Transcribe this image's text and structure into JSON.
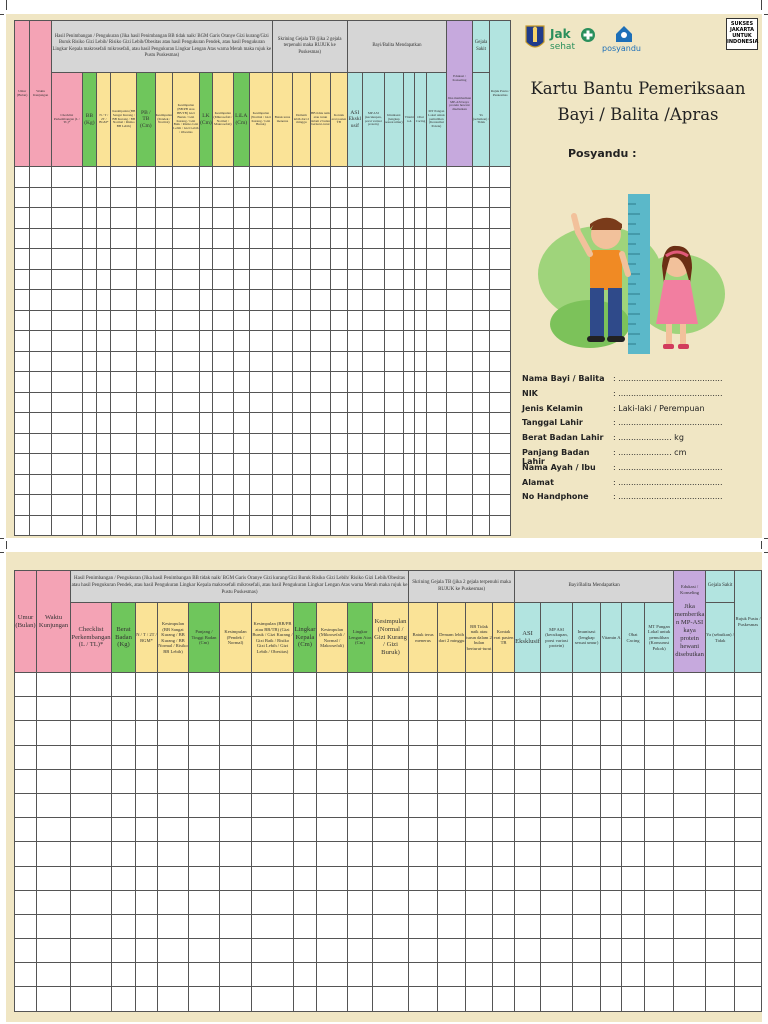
{
  "card": {
    "title_line1": "Kartu Bantu Pemeriksaan",
    "title_line2": "Bayi / Balita /Apras",
    "posyandu_label": "Posyandu :",
    "badge": "SUKSES JAKARTA UNTUK INDONESIA",
    "logo_jaksehat": "Jak sehat",
    "logo_posyandu": "posyandu"
  },
  "form": {
    "fields": [
      {
        "label": "Nama Bayi / Balita",
        "value": ": ........................................."
      },
      {
        "label": "NIK",
        "value": ": ........................................."
      },
      {
        "label": "Jenis Kelamin",
        "value": ": Laki-laki / Perempuan"
      },
      {
        "label": "Tanggal Lahir",
        "value": ": ........................................."
      },
      {
        "label": "Berat Badan Lahir",
        "value": ": ..................... kg"
      },
      {
        "label": "Panjang Badan Lahir",
        "value": ": ..................... cm"
      },
      {
        "label": "Nama Ayah / Ibu",
        "value": ": ........................................."
      },
      {
        "label": "Alamat",
        "value": ": ........................................."
      },
      {
        "label": "No Handphone",
        "value": ": ........................................."
      }
    ]
  },
  "table1": {
    "group_hasil": "Hasil Penimbangan / Pengukuran (Jika hasil Penimbangan BB tidak naik/ BGM Garis Oranye Gizi kurang/Gizi Buruk Risiko Gizi Lebih/ Risiko Gizi Lebih/Obesitas atau hasil Pengukuran Pendek, atau hasil Pengukuran Lingkar Kepala makrosefali mikrosefali, atau hasil Pengukuran Lingkar Lengan Atas warna Merah maka rujuk ke Pustu Puskesmas)",
    "group_skrining": "Skrining Gejala TB (jika 2 gejala terpenuhi maka RUJUK ke Puskesmas)",
    "group_mendapatkan": "Bayi/Balita Mendapatkan",
    "group_edukasi": "Edukasi / Konseling",
    "group_gejala": "Gejala Sakit",
    "cols": [
      "Umur (Bulan)",
      "Waktu Kunjungan",
      "Checklist Perkembangan (L / TL)*",
      "BB (Kg)",
      "N / T / 2T / BGM*",
      "Kesimpulan (BB Sangat Kurang / BB Kurang / BB Normal / Risiko BB Lebih)",
      "PB / TB (Cm)",
      "Kesimpulan (Pendek / Normal)",
      "Kesimpulan (BB/PB atau BB/TB) Gizi Buruk / Gizi Kurang / Gizi Baik / Risiko Gizi Lebih / Gizi Lebih / Obesitas",
      "LK (Cm)",
      "Kesimpulan (Mikrosefali / Normal / Makrosefali)",
      "LiLA (Cm)",
      "Kesimpulan (Normal / Gizi Kurang / Gizi Buruk)",
      "Batuk terus menerus",
      "Demam lebih dari 2 minggu",
      "BB tidak naik atau turun dalam 2 bulan berturut-turut",
      "Kontak erat pasien TB",
      "ASI Eksklusif",
      "MP ASI (kecukupan, porsi variasi protein)",
      "Imunisasi (lengkap sesuai umur)",
      "Vitamin A",
      "Obat Cacing",
      "MT Pangan Lokal untuk pemulihan (Konsumsi Pokok)",
      "Jika memberikan MP-ASI kaya protein hewani disebutkan",
      "Ya (sebutkan) / Tidak",
      "Rujuk Pustu / Puskesmas"
    ]
  },
  "table2": {
    "group_hasil": "Hasil Penimbangan / Pengukuran (Jika hasil Penimbangan BB tidak naik/ BGM Garis Oranye Gizi kurang/Gizi Buruk Risiko Gizi Lebih/ Risiko Gizi Lebih/Obesitas atau hasil Pengukuran Pendek, atau hasil Pengukuran Lingkar Kepala makrosefali mikrosefali, atau hasil Pengukuran Lingkar Lengan Atas warna Merah maka rujuk ke Pustu Puskesmas)",
    "group_skrining": "Skrining Gejala TB (jika 2 gejala terpenuhi maka RUJUK ke Puskesmas)",
    "group_mendapatkan": "Bayi/Balita Mendapatkan",
    "group_edukasi": "Edukasi / Konseling",
    "group_gejala": "Gejala Sakit",
    "cols": [
      "Umur (Bulan)",
      "Waktu Kunjungan",
      "Checklist Perkembangan (L / TL)*",
      "Berat Badan (Kg)",
      "N / T / 2T / BGM*",
      "Kesimpulan (BB Sangat Kurang / BB Kurang / BB Normal / Risiko BB Lebih)",
      "Panjang / Tinggi Badan (Cm)",
      "Kesimpulan (Pendek / Normal)",
      "Kesimpulan (BB/PB atau BB/TB) (Gizi Buruk / Gizi Kurang / Gizi Baik / Risiko Gizi Lebih / Gizi Lebih / Obesitas)",
      "Lingkar Kepala (Cm)",
      "Kesimpulan (Mikrosefali / Normal / Makrosefali)",
      "Lingkar Lengan Atas (Cm)",
      "Kesimpulan (Normal / Gizi Kurang / Gizi Buruk)",
      "Batuk terus menerus",
      "Demam lebih dari 2 minggu",
      "BB Tidak naik atau turun dalam 2 bulan berturut-turut",
      "Kontak erat pasien TB",
      "ASI Eksklusif",
      "MP ASI (kecukupan, porsi variasi protein)",
      "Imunisasi (lengkap sesuai umur)",
      "Vitamin A",
      "Obat Cacing",
      "MT Pangan Lokal untuk pemulihan (Konsumsi Pokok)",
      "Jika memberikan MP-ASI kaya protein hewani disebutkan",
      "Ya (sebutkan) / Tidak",
      "Rujuk Pustu / Puskesmas"
    ]
  }
}
